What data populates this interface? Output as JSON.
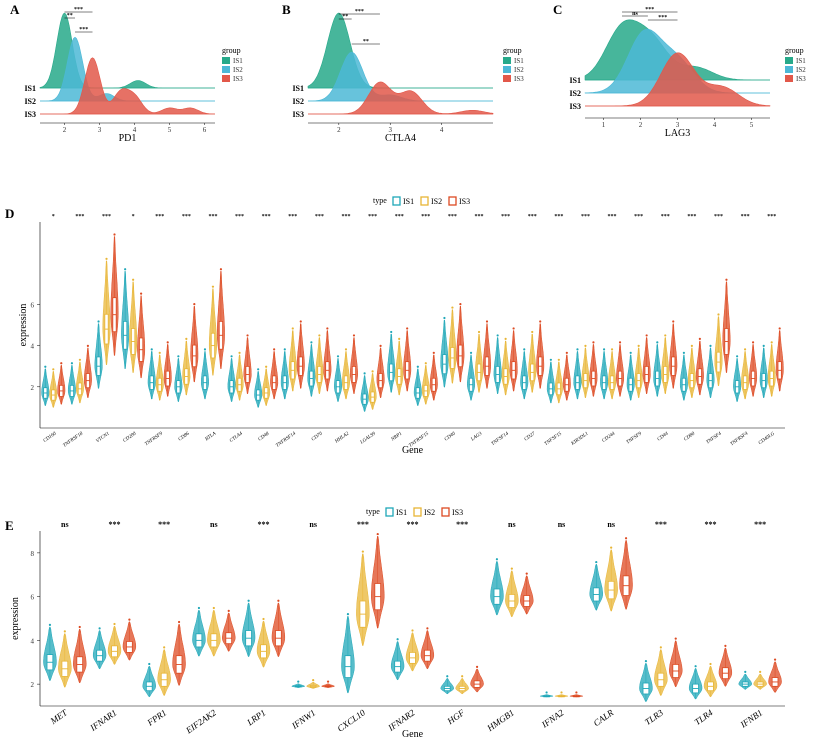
{
  "colors": {
    "IS1_ridge": "#27a98a",
    "IS2_ridge": "#4cb8d6",
    "IS3_ridge": "#e2584a",
    "IS1_violin": "#1fa7b8",
    "IS2_violin": "#e8b535",
    "IS3_violin": "#dd4a22"
  },
  "panels": {
    "A": {
      "letter": "A"
    },
    "B": {
      "letter": "B"
    },
    "C": {
      "letter": "C"
    },
    "D": {
      "letter": "D"
    },
    "E": {
      "letter": "E"
    }
  },
  "chart_data": [
    {
      "id": "A",
      "type": "area",
      "subtype": "ridgeline",
      "xlabel": "PD1",
      "xticks": [
        "2",
        "3",
        "4",
        "5",
        "6"
      ],
      "xlim": [
        1.3,
        6.3
      ],
      "legend_title": "group",
      "legend_position": "right",
      "series": [
        {
          "name": "IS1",
          "row_label": "IS1",
          "peaks": [
            [
              2.0,
              1.0
            ],
            [
              4.1,
              0.1
            ]
          ]
        },
        {
          "name": "IS2",
          "row_label": "IS2",
          "peaks": [
            [
              2.3,
              0.85
            ],
            [
              3.2,
              0.1
            ]
          ]
        },
        {
          "name": "IS3",
          "row_label": "IS3",
          "peaks": [
            [
              2.8,
              0.75
            ],
            [
              3.6,
              0.28
            ],
            [
              4.0,
              0.22
            ],
            [
              5.0,
              0.08
            ],
            [
              5.6,
              0.08
            ]
          ]
        }
      ],
      "comparisons": [
        {
          "pair": "IS1-IS3",
          "label": "***"
        },
        {
          "pair": "IS1-IS2",
          "label": "**"
        },
        {
          "pair": "IS2-IS3",
          "label": "***"
        }
      ]
    },
    {
      "id": "B",
      "type": "area",
      "subtype": "ridgeline",
      "xlabel": "CTLA4",
      "xticks": [
        "2",
        "3",
        "4"
      ],
      "xlim": [
        1.4,
        5.0
      ],
      "legend_title": "group",
      "legend_position": "right",
      "series": [
        {
          "name": "IS1",
          "row_label": "IS1",
          "peaks": [
            [
              2.0,
              1.0
            ]
          ]
        },
        {
          "name": "IS2",
          "row_label": "IS2",
          "peaks": [
            [
              2.25,
              0.65
            ],
            [
              3.0,
              0.08
            ]
          ]
        },
        {
          "name": "IS3",
          "row_label": "IS3",
          "peaks": [
            [
              2.8,
              0.42
            ],
            [
              3.4,
              0.3
            ],
            [
              4.6,
              0.05
            ]
          ]
        }
      ],
      "comparisons": [
        {
          "pair": "IS1-IS3",
          "label": "***"
        },
        {
          "pair": "IS1-IS2",
          "label": "**"
        },
        {
          "pair": "IS2-IS3",
          "label": "**"
        }
      ]
    },
    {
      "id": "C",
      "type": "area",
      "subtype": "ridgeline",
      "xlabel": "LAG3",
      "xticks": [
        "1",
        "2",
        "3",
        "4",
        "5"
      ],
      "xlim": [
        0.5,
        5.5
      ],
      "legend_title": "group",
      "legend_position": "right",
      "series": [
        {
          "name": "IS1",
          "row_label": "IS1",
          "peaks": [
            [
              1.5,
              0.8
            ],
            [
              2.3,
              0.6
            ],
            [
              3.5,
              0.2
            ]
          ]
        },
        {
          "name": "IS2",
          "row_label": "IS2",
          "peaks": [
            [
              2.1,
              0.95
            ],
            [
              3.0,
              0.5
            ]
          ]
        },
        {
          "name": "IS3",
          "row_label": "IS3",
          "peaks": [
            [
              3.0,
              0.85
            ],
            [
              4.2,
              0.3
            ]
          ]
        }
      ],
      "comparisons": [
        {
          "pair": "IS1-IS2",
          "label": "ns"
        },
        {
          "pair": "IS1-IS3",
          "label": "***"
        },
        {
          "pair": "IS2-IS3",
          "label": "***"
        }
      ]
    },
    {
      "id": "D",
      "type": "violin",
      "legend_title": "type",
      "legend_position": "top",
      "series_names": [
        "IS1",
        "IS2",
        "IS3"
      ],
      "xlabel": "Gene",
      "ylabel": "expression",
      "yticks": [
        "2",
        "4",
        "6"
      ],
      "ylim": [
        0,
        10
      ],
      "genes": [
        "CD160",
        "TNFRSF18",
        "VTCN1",
        "CD200",
        "TNFRSF9",
        "CD86",
        "BTLA",
        "CTLA4",
        "CD48",
        "TNFRSF14",
        "CD70",
        "HHLA2",
        "LGALS9",
        "NRP1",
        "TNFRSF15",
        "CD40",
        "LAG3",
        "TNFSF14",
        "CD27",
        "TNFSF15",
        "KIR3DL1",
        "CD244",
        "TNFSF9",
        "CD44",
        "CD80",
        "TNFSF4",
        "TNFRSF4",
        "CD40LG"
      ],
      "significance": [
        "*",
        "***",
        "***",
        "*",
        "***",
        "***",
        "***",
        "***",
        "***",
        "***",
        "***",
        "***",
        "***",
        "***",
        "***",
        "***",
        "***",
        "***",
        "***",
        "***",
        "***",
        "***",
        "***",
        "***",
        "***",
        "***",
        "***",
        "***"
      ],
      "medians": [
        [
          1.7,
          1.6,
          1.8
        ],
        [
          1.8,
          1.9,
          2.3
        ],
        [
          3.0,
          4.8,
          5.5
        ],
        [
          4.5,
          4.2,
          3.8
        ],
        [
          2.2,
          2.1,
          2.4
        ],
        [
          2.0,
          2.5,
          3.5
        ],
        [
          2.2,
          4.0,
          4.5
        ],
        [
          2.0,
          2.1,
          2.6
        ],
        [
          1.6,
          1.7,
          2.2
        ],
        [
          2.2,
          2.8,
          3.0
        ],
        [
          2.4,
          2.6,
          2.8
        ],
        [
          2.0,
          2.2,
          2.6
        ],
        [
          1.4,
          1.5,
          2.3
        ],
        [
          2.7,
          2.5,
          2.8
        ],
        [
          1.7,
          1.8,
          2.1
        ],
        [
          3.1,
          3.4,
          3.5
        ],
        [
          2.1,
          2.7,
          3.0
        ],
        [
          2.6,
          2.5,
          2.8
        ],
        [
          2.2,
          2.7,
          3.0
        ],
        [
          1.9,
          1.9,
          2.1
        ],
        [
          2.2,
          2.3,
          2.4
        ],
        [
          2.2,
          2.2,
          2.4
        ],
        [
          2.1,
          2.3,
          2.6
        ],
        [
          2.4,
          2.6,
          3.0
        ],
        [
          2.1,
          2.3,
          2.5
        ],
        [
          2.3,
          3.2,
          4.2
        ],
        [
          2.0,
          2.2,
          2.4
        ],
        [
          2.3,
          2.4,
          2.8
        ]
      ]
    },
    {
      "id": "E",
      "type": "violin",
      "legend_title": "type",
      "legend_position": "top",
      "series_names": [
        "IS1",
        "IS2",
        "IS3"
      ],
      "xlabel": "Gene",
      "ylabel": "expression",
      "yticks": [
        "2",
        "4",
        "6",
        "8"
      ],
      "ylim": [
        1.0,
        9.0
      ],
      "genes": [
        "MET",
        "IFNAR1",
        "FPR1",
        "EIF2AK2",
        "LRP1",
        "IFNW1",
        "CXCL10",
        "IFNAR2",
        "HGF",
        "HMGB1",
        "IFNA2",
        "CALR",
        "TLR3",
        "TLR4",
        "IFNB1"
      ],
      "significance": [
        "ns",
        "***",
        "***",
        "ns",
        "***",
        "ns",
        "***",
        "***",
        "***",
        "ns",
        "ns",
        "ns",
        "***",
        "***",
        "***"
      ],
      "medians": [
        [
          3.0,
          2.7,
          2.9
        ],
        [
          3.3,
          3.5,
          3.7
        ],
        [
          1.9,
          2.2,
          2.9
        ],
        [
          4.0,
          4.0,
          4.1
        ],
        [
          4.1,
          3.5,
          4.1
        ],
        [
          1.9,
          1.9,
          1.9
        ],
        [
          2.8,
          5.2,
          6.0
        ],
        [
          2.8,
          3.2,
          3.3
        ],
        [
          1.8,
          1.8,
          2.0
        ],
        [
          6.0,
          5.8,
          5.8
        ],
        [
          1.45,
          1.45,
          1.45
        ],
        [
          6.1,
          6.3,
          6.5
        ],
        [
          1.8,
          2.2,
          2.6
        ],
        [
          1.8,
          1.9,
          2.5
        ],
        [
          2.0,
          2.0,
          2.1
        ]
      ],
      "spreads": [
        [
          0.7,
          0.7,
          0.7
        ],
        [
          0.5,
          0.5,
          0.5
        ],
        [
          0.4,
          0.6,
          0.8
        ],
        [
          0.6,
          0.6,
          0.5
        ],
        [
          0.7,
          0.6,
          0.7
        ],
        [
          0.05,
          0.08,
          0.05
        ],
        [
          1.0,
          1.2,
          1.2
        ],
        [
          0.5,
          0.5,
          0.5
        ],
        [
          0.2,
          0.2,
          0.3
        ],
        [
          0.7,
          0.6,
          0.5
        ],
        [
          0.03,
          0.03,
          0.03
        ],
        [
          0.6,
          0.8,
          0.9
        ],
        [
          0.5,
          0.6,
          0.6
        ],
        [
          0.4,
          0.4,
          0.5
        ],
        [
          0.2,
          0.2,
          0.4
        ]
      ]
    }
  ]
}
